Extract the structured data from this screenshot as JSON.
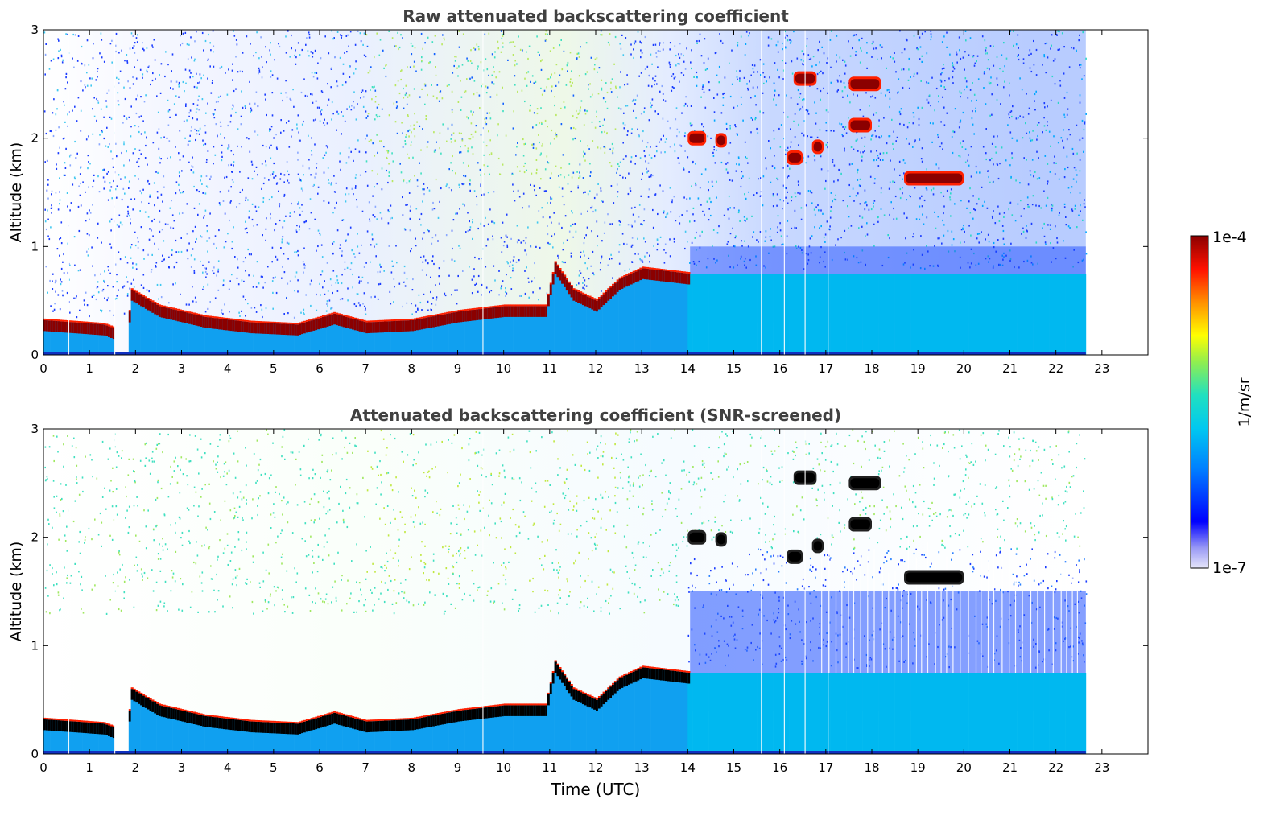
{
  "chart_data": [
    {
      "type": "heatmap",
      "title": "Raw attenuated backscattering coefficient",
      "xlabel": "",
      "ylabel": "Altitude (km)",
      "xlim": [
        0,
        24
      ],
      "ylim": [
        0,
        3
      ],
      "xticks": [
        "0",
        "1",
        "2",
        "3",
        "4",
        "5",
        "6",
        "7",
        "8",
        "9",
        "10",
        "11",
        "12",
        "13",
        "14",
        "15",
        "16",
        "17",
        "18",
        "19",
        "20",
        "21",
        "22",
        "23"
      ],
      "yticks": [
        "0",
        "1",
        "2",
        "3"
      ],
      "data_end_hour": 22.65,
      "boundary_layer_top_km": [
        [
          0,
          0.32
        ],
        [
          1.3,
          0.28
        ],
        [
          1.8,
          0.2
        ],
        [
          1.9,
          0.6
        ],
        [
          2.5,
          0.45
        ],
        [
          3.5,
          0.35
        ],
        [
          4.5,
          0.3
        ],
        [
          5.5,
          0.28
        ],
        [
          6.3,
          0.38
        ],
        [
          7.0,
          0.3
        ],
        [
          8.0,
          0.32
        ],
        [
          9.0,
          0.4
        ],
        [
          10.0,
          0.45
        ],
        [
          10.9,
          0.45
        ],
        [
          11.1,
          0.85
        ],
        [
          11.5,
          0.6
        ],
        [
          12.0,
          0.5
        ],
        [
          12.5,
          0.7
        ],
        [
          13.0,
          0.8
        ],
        [
          14.0,
          0.75
        ]
      ],
      "cloud_layers": [
        {
          "t0": 14.0,
          "t1": 14.4,
          "alt": 2.0
        },
        {
          "t0": 14.6,
          "t1": 14.85,
          "alt": 1.98
        },
        {
          "t0": 16.3,
          "t1": 16.8,
          "alt": 2.55
        },
        {
          "t0": 16.15,
          "t1": 16.5,
          "alt": 1.82
        },
        {
          "t0": 16.7,
          "t1": 16.95,
          "alt": 1.92
        },
        {
          "t0": 17.5,
          "t1": 18.2,
          "alt": 2.5
        },
        {
          "t0": 17.5,
          "t1": 18.0,
          "alt": 2.12
        },
        {
          "t0": 18.7,
          "t1": 20.0,
          "alt": 1.63
        }
      ]
    },
    {
      "type": "heatmap",
      "title": "Attenuated backscattering coefficient (SNR-screened)",
      "xlabel": "Time (UTC)",
      "ylabel": "Altitude (km)",
      "xlim": [
        0,
        24
      ],
      "ylim": [
        0,
        3
      ],
      "xticks": [
        "0",
        "1",
        "2",
        "3",
        "4",
        "5",
        "6",
        "7",
        "8",
        "9",
        "10",
        "11",
        "12",
        "13",
        "14",
        "15",
        "16",
        "17",
        "18",
        "19",
        "20",
        "21",
        "22",
        "23"
      ],
      "yticks": [
        "0",
        "1",
        "2",
        "3"
      ],
      "data_end_hour": 22.65
    }
  ],
  "colorbar": {
    "label": "1/m/sr",
    "max_label": "1e-4",
    "min_label": "1e-7",
    "colors": [
      "#e6e6fa",
      "#0000ff",
      "#00bfff",
      "#40e0d0",
      "#ffff00",
      "#ff8c00",
      "#ff0000",
      "#8b0000"
    ]
  }
}
